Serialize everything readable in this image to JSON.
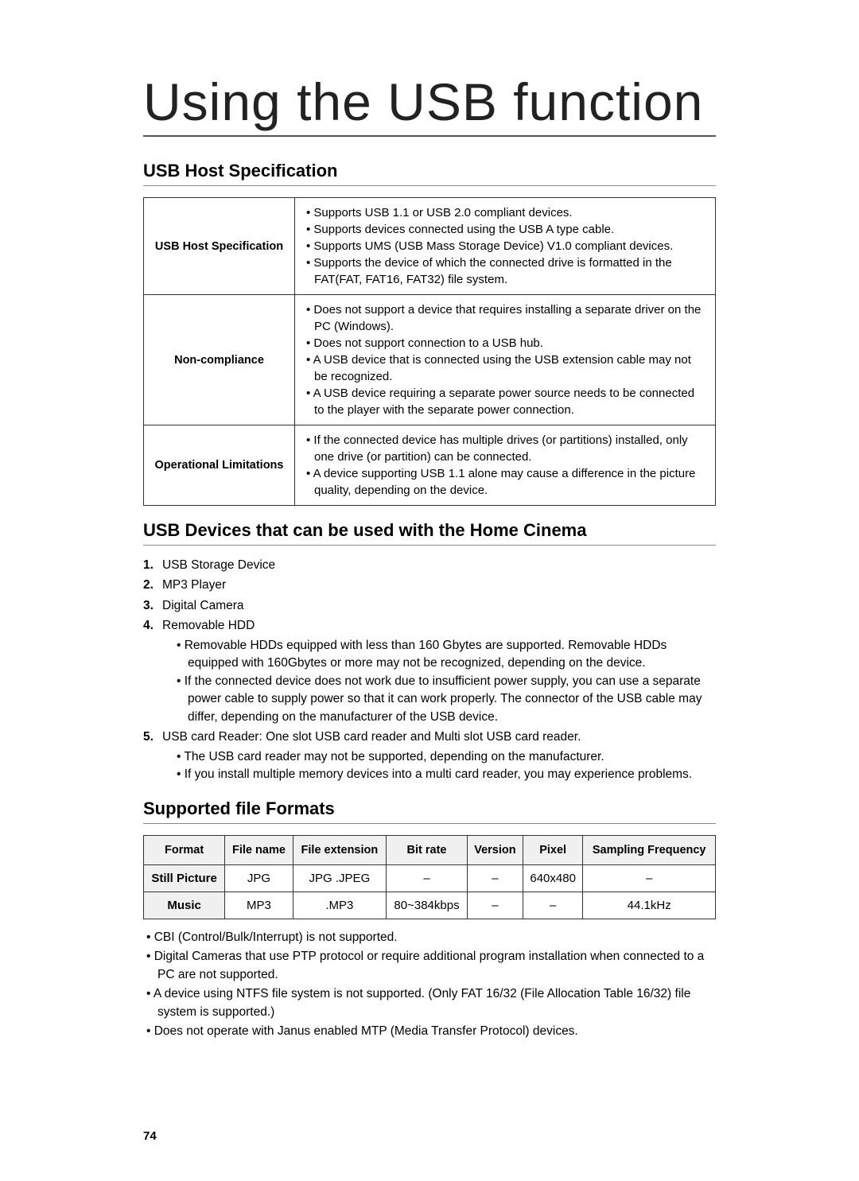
{
  "page_title": "Using the USB function",
  "page_number": "74",
  "sections": {
    "usb_host": {
      "title": "USB Host Specification",
      "rows": [
        {
          "label": "USB Host Specification",
          "bullets": [
            "Supports USB 1.1 or USB 2.0 compliant devices.",
            "Supports devices connected using the USB A type cable.",
            "Supports UMS (USB Mass Storage Device) V1.0 compliant devices.",
            "Supports the device of which the connected drive is formatted in the FAT(FAT, FAT16, FAT32) file system."
          ]
        },
        {
          "label": "Non-compliance",
          "bullets": [
            "Does not support a device that requires installing a separate driver on the PC (Windows).",
            "Does not support connection to a USB hub.",
            "A USB device that is connected using the USB extension cable may not be recognized.",
            "A USB device requiring a separate power source needs to be connected to the player with the separate power connection."
          ]
        },
        {
          "label": "Operational Limitations",
          "bullets": [
            "If the connected device has multiple drives (or partitions) installed, only one drive (or partition) can be connected.",
            "A device supporting USB 1.1 alone may cause a difference in the picture quality, depending on the device."
          ]
        }
      ]
    },
    "usb_devices": {
      "title": "USB Devices that can be used with the Home Cinema",
      "items": [
        {
          "label": "USB Storage Device",
          "sub": []
        },
        {
          "label": "MP3 Player",
          "sub": []
        },
        {
          "label": "Digital Camera",
          "sub": []
        },
        {
          "label": "Removable HDD",
          "sub": [
            "Removable HDDs equipped with less than 160 Gbytes are supported. Removable HDDs equipped with 160Gbytes or more may not be recognized, depending on the device.",
            "If the connected device does not work due to insufficient power supply, you can use a separate power cable to supply power so that it can work properly. The connector of the USB cable may differ, depending on the manufacturer of the USB device."
          ]
        },
        {
          "label": "USB card Reader: One slot USB card reader and Multi slot USB card reader.",
          "sub": [
            "The USB card reader may not be supported, depending on the manufacturer.",
            "If you install multiple memory devices into a multi card reader, you may experience problems."
          ]
        }
      ]
    },
    "supported_formats": {
      "title": "Supported file Formats",
      "headers": [
        "Format",
        "File name",
        "File extension",
        "Bit rate",
        "Version",
        "Pixel",
        "Sampling Frequency"
      ],
      "rows": [
        [
          "Still Picture",
          "JPG",
          "JPG .JPEG",
          "–",
          "–",
          "640x480",
          "–"
        ],
        [
          "Music",
          "MP3",
          ".MP3",
          "80~384kbps",
          "–",
          "–",
          "44.1kHz"
        ]
      ],
      "notes": [
        "CBI (Control/Bulk/Interrupt) is not supported.",
        "Digital Cameras that use PTP protocol or require additional program installation when connected to a PC are not supported.",
        "A device using NTFS file system is not supported. (Only FAT 16/32 (File Allocation Table 16/32) file system is supported.)",
        "Does not operate with Janus enabled MTP (Media Transfer Protocol) devices."
      ]
    }
  }
}
